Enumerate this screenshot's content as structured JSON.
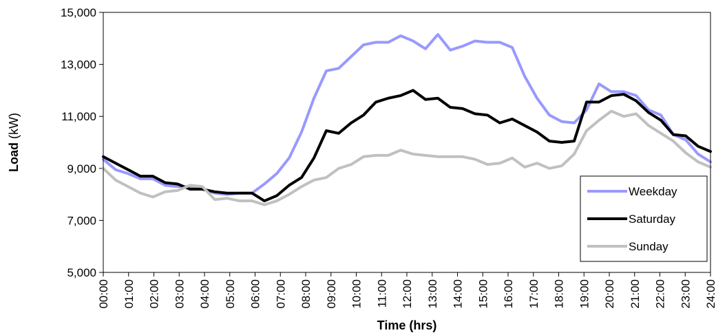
{
  "chart_data": {
    "type": "line",
    "xlabel": "Time (hrs)",
    "ylabel_bold": "Load",
    "ylabel_rest": " (kW)",
    "ylim": [
      5000,
      15000
    ],
    "yticks": [
      5000,
      7000,
      9000,
      11000,
      13000,
      15000
    ],
    "ytick_labels": [
      "5,000",
      "7,000",
      "9,000",
      "11,000",
      "13,000",
      "15,000"
    ],
    "xtick_labels": [
      "00:00",
      "01:00",
      "02:00",
      "03:00",
      "04:00",
      "05:00",
      "06:00",
      "07:00",
      "08:00",
      "09:00",
      "10:00",
      "11:00",
      "12:00",
      "13:00",
      "14:00",
      "15:00",
      "16:00",
      "17:00",
      "18:00",
      "19:00",
      "20:00",
      "21:00",
      "22:00",
      "23:00",
      "24:00"
    ],
    "x_range_hours": [
      0,
      24
    ],
    "legend_position": "right",
    "series": [
      {
        "name": "Weekday",
        "color": "#9999ff",
        "values": [
          9350,
          8950,
          8800,
          8600,
          8600,
          8350,
          8300,
          8300,
          8200,
          8050,
          8000,
          8050,
          8050,
          8400,
          8800,
          9400,
          10400,
          11700,
          12750,
          12850,
          13300,
          13750,
          13850,
          13850,
          14100,
          13900,
          13600,
          14150,
          13550,
          13700,
          13900,
          13850,
          13850,
          13650,
          12550,
          11700,
          11050,
          10800,
          10750,
          11250,
          12250,
          11950,
          11950,
          11800,
          11250,
          11050,
          10300,
          10100,
          9550,
          9250
        ]
      },
      {
        "name": "Saturday",
        "color": "#000000",
        "values": [
          9450,
          9200,
          8950,
          8700,
          8700,
          8450,
          8400,
          8200,
          8200,
          8100,
          8050,
          8050,
          8050,
          7750,
          7950,
          8350,
          8650,
          9400,
          10450,
          10350,
          10750,
          11050,
          11550,
          11700,
          11800,
          12000,
          11650,
          11700,
          11350,
          11300,
          11100,
          11050,
          10750,
          10900,
          10650,
          10400,
          10050,
          10000,
          10050,
          11550,
          11550,
          11800,
          11850,
          11600,
          11150,
          10850,
          10300,
          10250,
          9850,
          9650
        ]
      },
      {
        "name": "Sunday",
        "color": "#c0c0c0",
        "values": [
          9000,
          8550,
          8300,
          8050,
          7900,
          8100,
          8150,
          8350,
          8300,
          7800,
          7850,
          7750,
          7750,
          7600,
          7750,
          8000,
          8300,
          8550,
          8650,
          9000,
          9150,
          9450,
          9500,
          9500,
          9700,
          9550,
          9500,
          9450,
          9450,
          9450,
          9350,
          9150,
          9200,
          9400,
          9050,
          9200,
          9000,
          9100,
          9550,
          10450,
          10850,
          11200,
          11000,
          11100,
          10650,
          10350,
          10050,
          9600,
          9250,
          9050
        ]
      }
    ]
  }
}
